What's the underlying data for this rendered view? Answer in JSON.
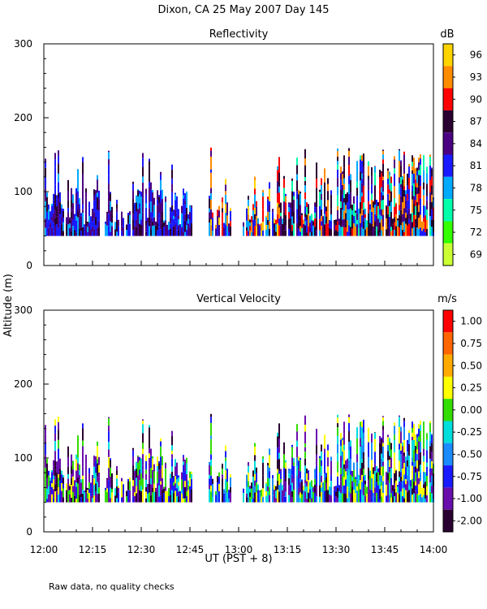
{
  "title": "Dixon, CA 25 May 2007  Day 145",
  "ylabel": "Altitude (m)",
  "xlabel": "UT  (PST + 8)",
  "footer_note": "Raw data, no quality checks",
  "chart_data": [
    {
      "type": "heatmap",
      "title": "Reflectivity",
      "ylabel": "Altitude (m)",
      "ylim": [
        0,
        300
      ],
      "yticks": [
        0,
        100,
        200,
        300
      ],
      "xticks": [
        "12:00",
        "12:15",
        "12:30",
        "12:45",
        "13:00",
        "13:15",
        "13:30",
        "13:45",
        "14:00"
      ],
      "xlim_hours": [
        12.0,
        14.0
      ],
      "colorbar": {
        "unit": "dB",
        "tick_labels": [
          "96",
          "93",
          "90",
          "87",
          "84",
          "81",
          "78",
          "75",
          "72",
          "69"
        ],
        "colors": [
          "#ffd400",
          "#ff8c00",
          "#ff0000",
          "#2a0030",
          "#4b0082",
          "#1a1aff",
          "#00aaff",
          "#00ffaa",
          "#33ff00",
          "#ccff33"
        ]
      }
    },
    {
      "type": "heatmap",
      "title": "Vertical Velocity",
      "ylabel": "Altitude (m)",
      "ylim": [
        0,
        300
      ],
      "yticks": [
        0,
        100,
        200,
        300
      ],
      "xticks": [
        "12:00",
        "12:15",
        "12:30",
        "12:45",
        "13:00",
        "13:15",
        "13:30",
        "13:45",
        "14:00"
      ],
      "xlim_hours": [
        12.0,
        14.0
      ],
      "colorbar": {
        "unit": "m/s",
        "tick_labels": [
          "1.00",
          "0.75",
          "0.50",
          "0.25",
          "0.00",
          "-0.25",
          "-0.50",
          "-0.75",
          "-1.00",
          "-2.00"
        ],
        "colors": [
          "#ff0000",
          "#ff6600",
          "#ffaa00",
          "#ffff00",
          "#33dd00",
          "#00dddd",
          "#1a8cff",
          "#1a1aff",
          "#6a0dad",
          "#2a0030"
        ]
      }
    }
  ]
}
